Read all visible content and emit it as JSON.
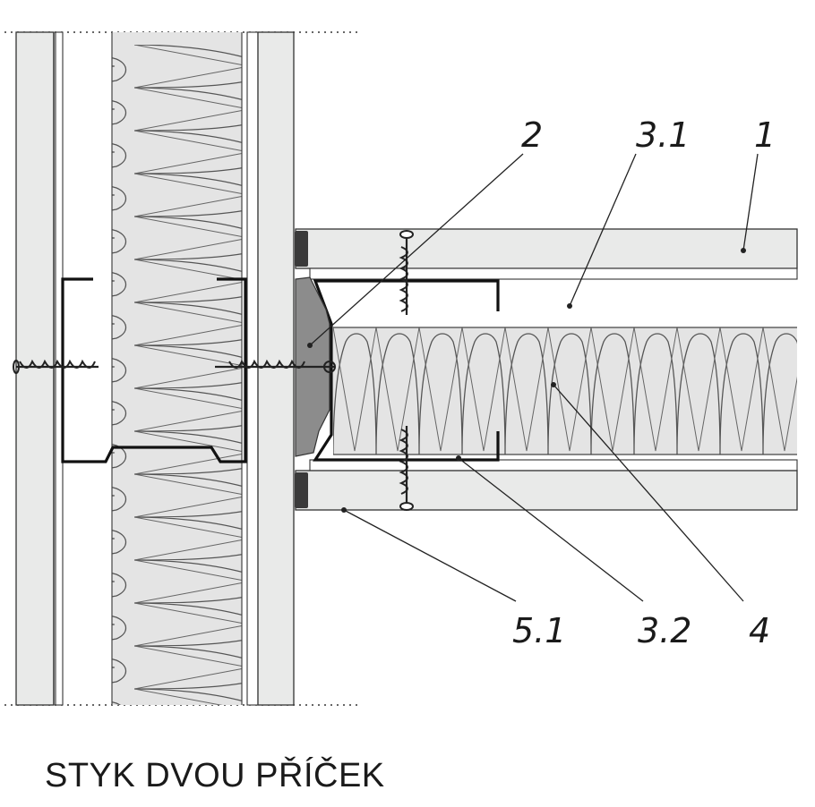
{
  "caption": "STYK DVOU PŘÍČEK",
  "labels": {
    "l2": "2",
    "l31": "3.1",
    "l1": "1",
    "l51": "5.1",
    "l32": "3.2",
    "l4": "4"
  },
  "colors": {
    "board": "#e9eae9",
    "insulation": "#e4e4e4",
    "stroke": "#333333",
    "sealant": "#8c8c8c",
    "profile": "#111111"
  }
}
